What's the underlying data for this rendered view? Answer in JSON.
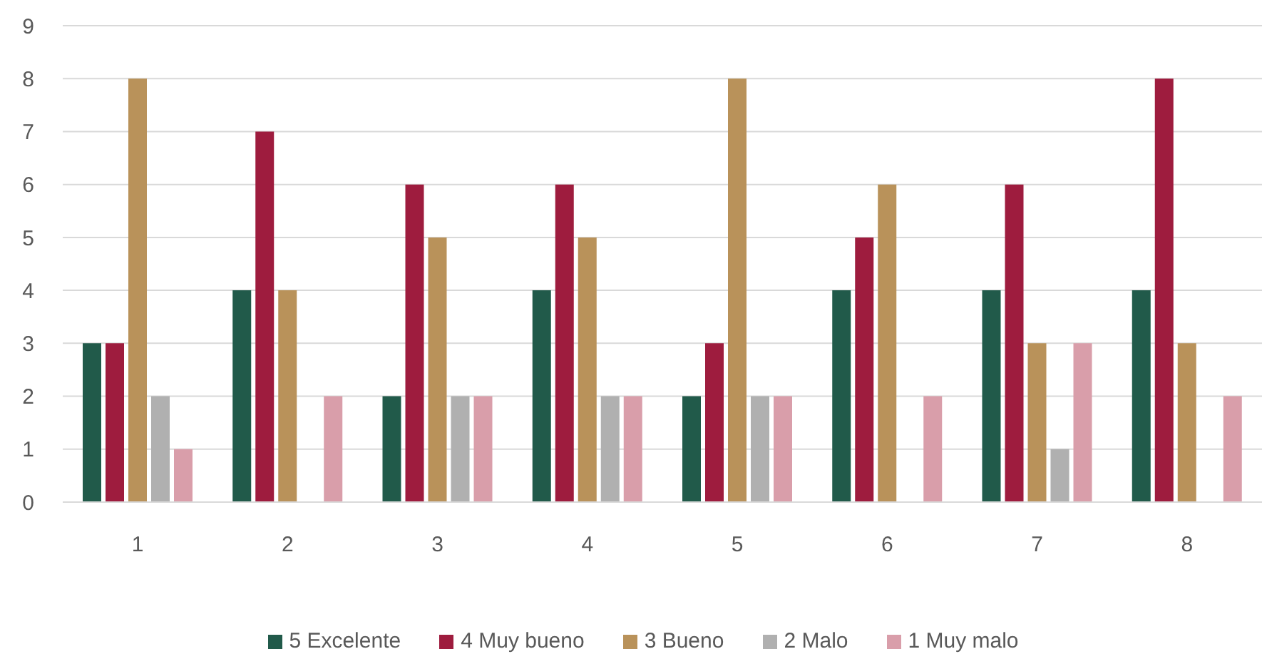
{
  "chart_data": {
    "type": "bar",
    "categories": [
      "1",
      "2",
      "3",
      "4",
      "5",
      "6",
      "7",
      "8"
    ],
    "series": [
      {
        "name": "5 Excelente",
        "color": "#215a4a",
        "values": [
          3,
          4,
          2,
          4,
          2,
          4,
          4,
          4
        ]
      },
      {
        "name": "4 Muy bueno",
        "color": "#9e1c3e",
        "values": [
          3,
          7,
          6,
          6,
          3,
          5,
          6,
          8
        ]
      },
      {
        "name": "3 Bueno",
        "color": "#b9925a",
        "values": [
          8,
          4,
          5,
          5,
          8,
          6,
          3,
          3
        ]
      },
      {
        "name": "2 Malo",
        "color": "#b0b0b0",
        "values": [
          2,
          0,
          2,
          2,
          2,
          0,
          1,
          0
        ]
      },
      {
        "name": "1 Muy malo",
        "color": "#d99eaa",
        "values": [
          1,
          2,
          2,
          2,
          2,
          2,
          3,
          2
        ]
      }
    ],
    "ylim": [
      0,
      9
    ],
    "yticks": [
      0,
      1,
      2,
      3,
      4,
      5,
      6,
      7,
      8,
      9
    ],
    "grid": "y",
    "legend": "bottom"
  }
}
